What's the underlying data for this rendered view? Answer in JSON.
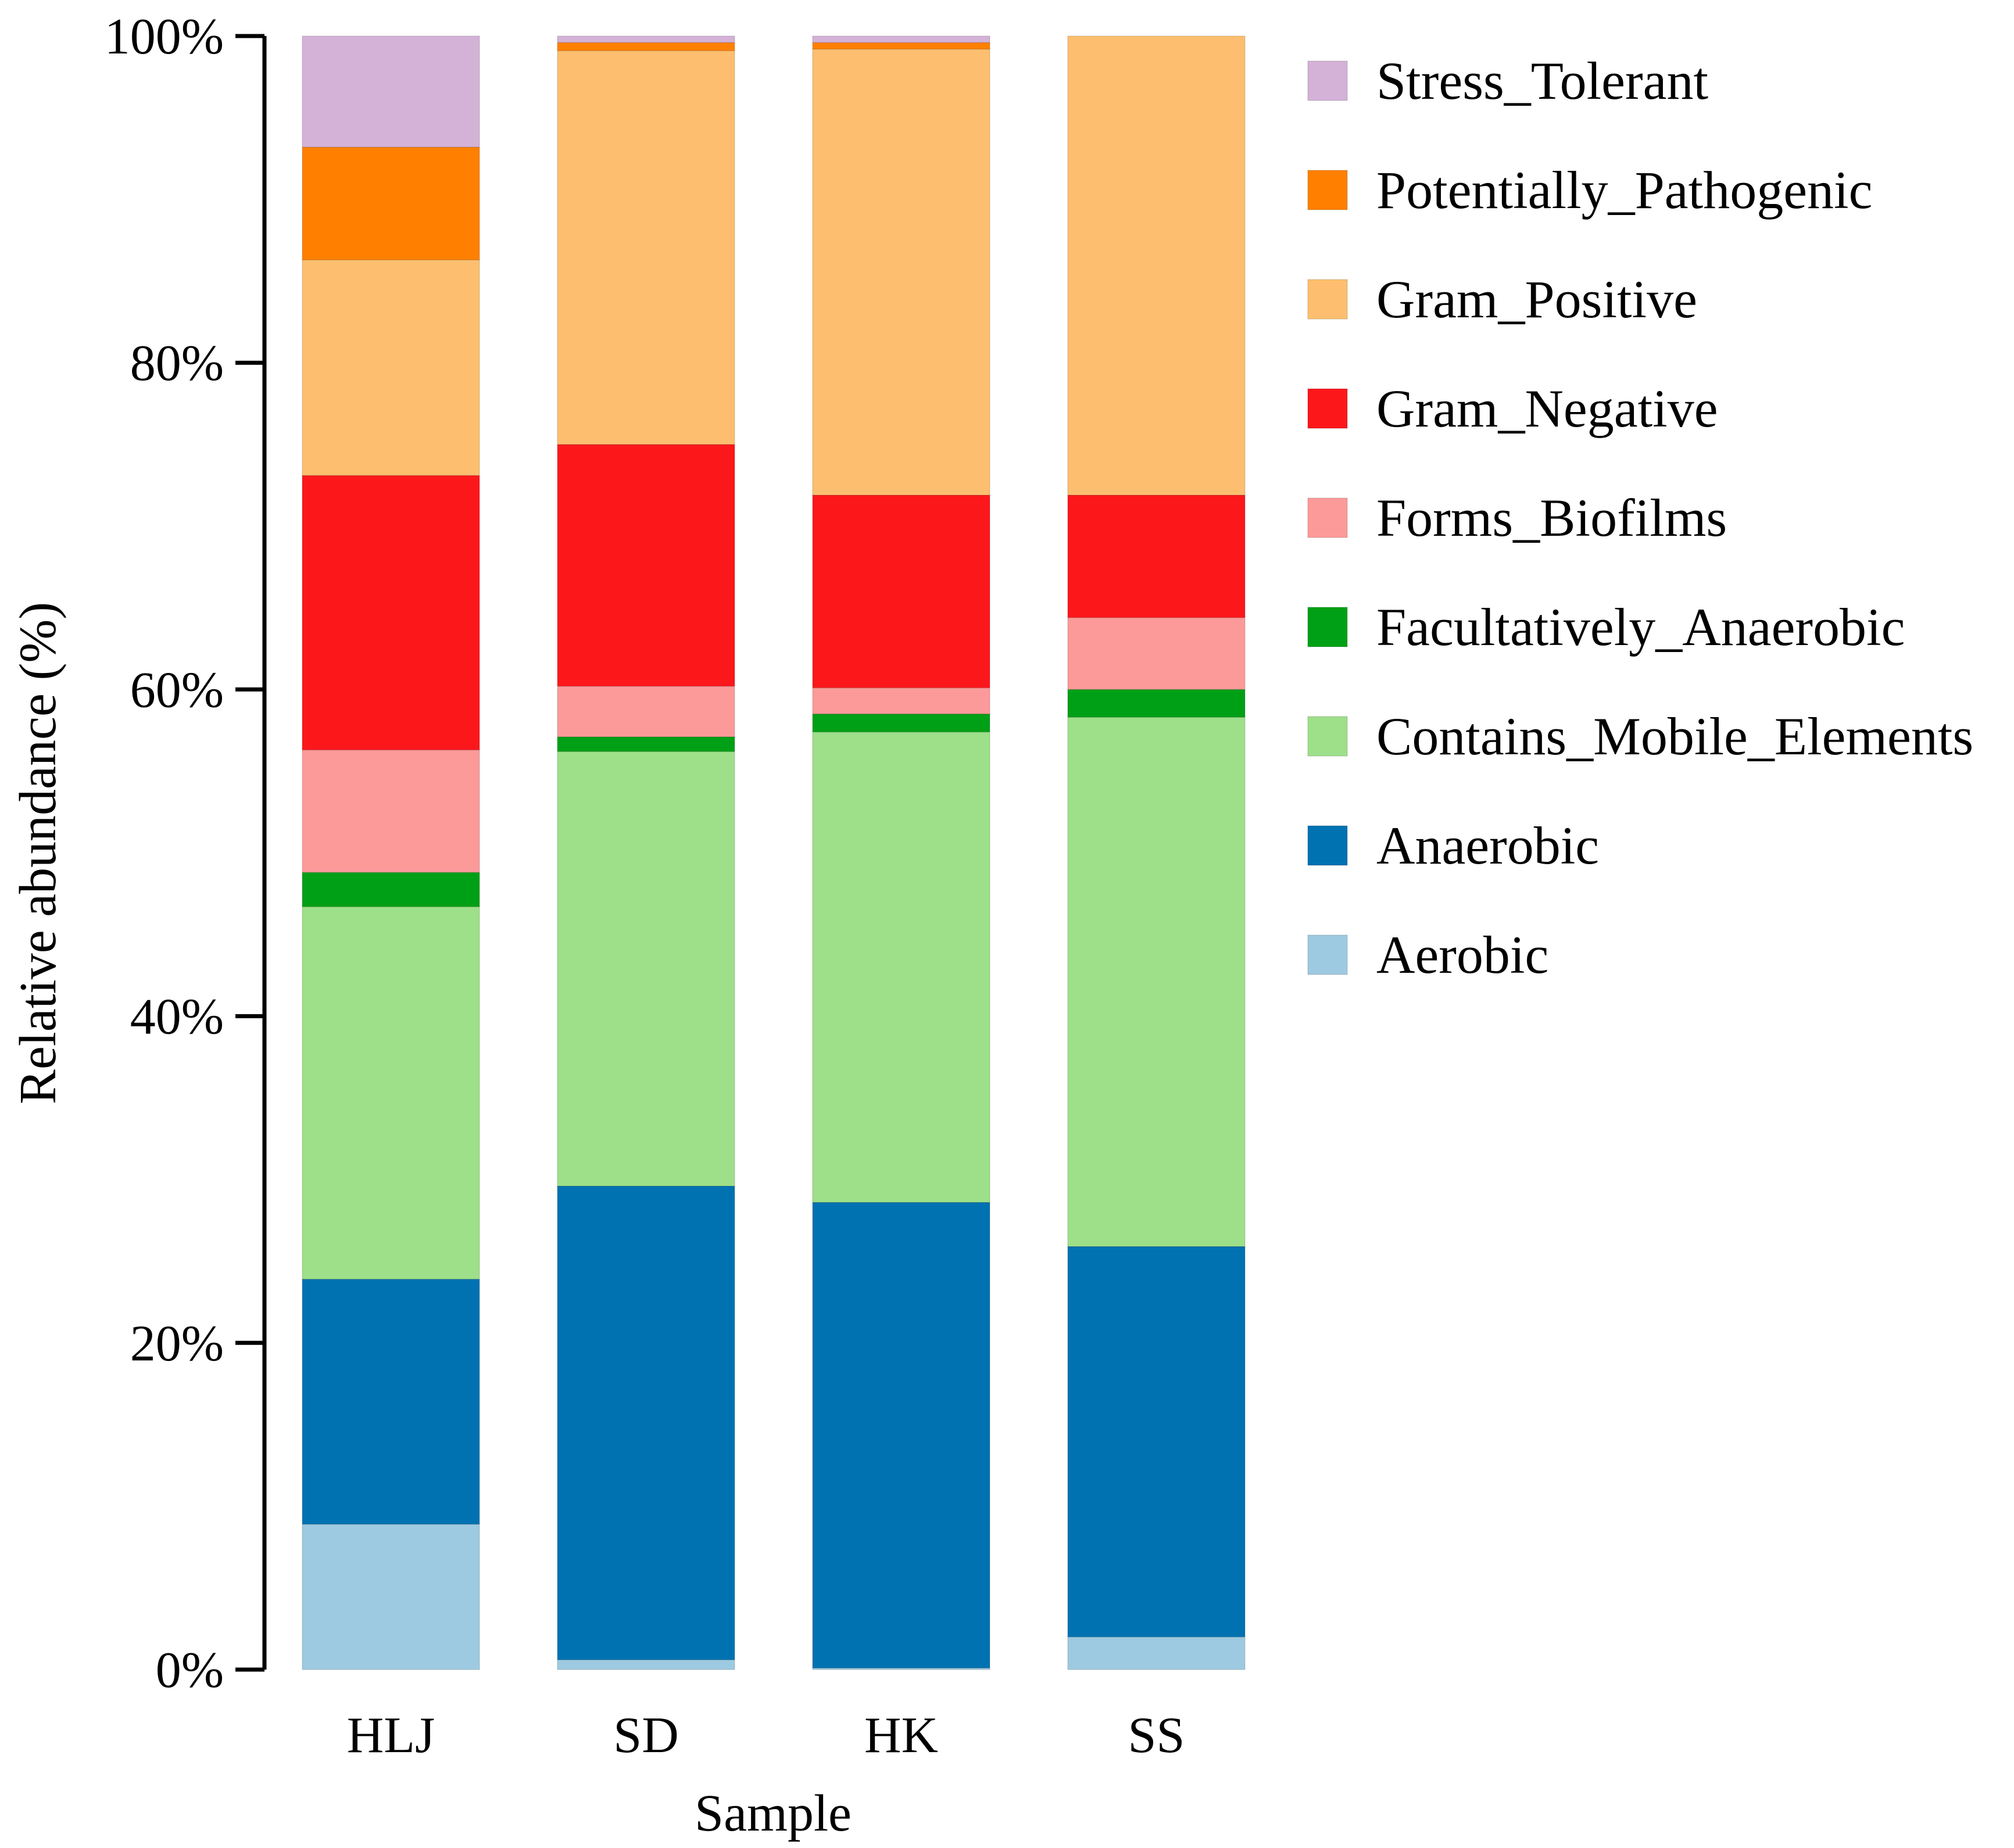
{
  "chart_data": {
    "type": "bar",
    "stacked": true,
    "xlabel": "Sample",
    "ylabel": "Relative abundance (%)",
    "ylim": [
      0,
      100
    ],
    "yticks": [
      "0%",
      "20%",
      "40%",
      "60%",
      "80%",
      "100%"
    ],
    "ytick_values": [
      0,
      20,
      40,
      60,
      80,
      100
    ],
    "categories": [
      "HLJ",
      "SD",
      "HK",
      "SS"
    ],
    "series": [
      {
        "name": "Aerobic",
        "color": "#9ecae1",
        "values": [
          8.9,
          0.6,
          0.1,
          2.0
        ]
      },
      {
        "name": "Anaerobic",
        "color": "#0072b2",
        "values": [
          15.0,
          29.0,
          28.5,
          23.9
        ]
      },
      {
        "name": "Contains_Mobile_Elements",
        "color": "#9de089",
        "values": [
          22.8,
          26.6,
          28.8,
          32.4
        ]
      },
      {
        "name": "Facultatively_Anaerobic",
        "color": "#00a016",
        "values": [
          2.1,
          0.9,
          1.1,
          1.7
        ]
      },
      {
        "name": "Forms_Biofilms",
        "color": "#fc9a9a",
        "values": [
          7.5,
          3.1,
          1.6,
          4.4
        ]
      },
      {
        "name": "Gram_Negative",
        "color": "#fc171b",
        "values": [
          16.8,
          14.8,
          11.8,
          7.5
        ]
      },
      {
        "name": "Gram_Positive",
        "color": "#fdbf6f",
        "values": [
          13.2,
          24.1,
          27.3,
          28.1
        ]
      },
      {
        "name": "Potentially_Pathogenic",
        "color": "#ff8000",
        "values": [
          6.9,
          0.5,
          0.4,
          0.0
        ]
      },
      {
        "name": "Stress_Tolerant",
        "color": "#d4b2d8",
        "values": [
          6.8,
          0.4,
          0.4,
          0.0
        ]
      }
    ],
    "legend_position": "right",
    "legend_order": [
      "Stress_Tolerant",
      "Potentially_Pathogenic",
      "Gram_Positive",
      "Gram_Negative",
      "Forms_Biofilms",
      "Facultatively_Anaerobic",
      "Contains_Mobile_Elements",
      "Anaerobic",
      "Aerobic"
    ]
  }
}
